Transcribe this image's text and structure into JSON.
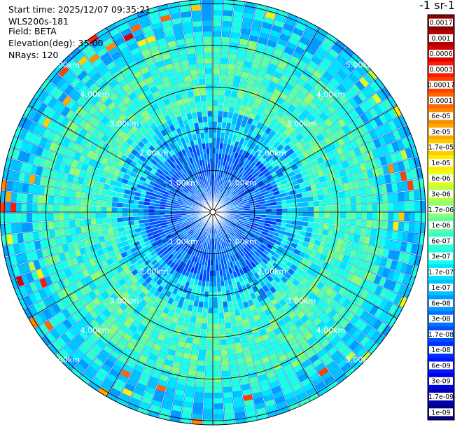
{
  "header": {
    "start_time": "Start time: 2025/12/07 09:35:21",
    "station": "WLS200s-181",
    "field": "Field: BETA",
    "elevation": "Elevation(deg): 35.00",
    "nrays": "NRays: 120"
  },
  "colorbar": {
    "title": "-1 sr-1",
    "labels": [
      "0.0017",
      "0.001",
      "0.0006",
      "0.0003",
      "0.00017",
      "0.0001",
      "6e-05",
      "3e-05",
      "1.7e-05",
      "1e-05",
      "6e-06",
      "3e-06",
      "1.7e-06",
      "1e-06",
      "6e-07",
      "3e-07",
      "1.7e-07",
      "1e-07",
      "6e-08",
      "3e-08",
      "1.7e-08",
      "1e-08",
      "6e-09",
      "3e-09",
      "1.7e-09",
      "1e-09"
    ],
    "colors": [
      "#8b0000",
      "#b00000",
      "#d90000",
      "#ff1a00",
      "#ff4000",
      "#ff6600",
      "#ff8a00",
      "#ffaa00",
      "#ffcc00",
      "#ffee00",
      "#e6ff1a",
      "#b8ff47",
      "#8cff73",
      "#5cffa3",
      "#33ffcc",
      "#1affe6",
      "#00e5ff",
      "#00c2ff",
      "#009cff",
      "#0073ff",
      "#0050ff",
      "#0030ff",
      "#0014ff",
      "#0000e0",
      "#0000b0",
      "#000080"
    ]
  },
  "chart_data": {
    "type": "heatmap",
    "projection": "polar PPI scan",
    "nrays": 120,
    "elevation_deg": 35.0,
    "range_unit": "km",
    "range_rings_km": [
      1,
      2,
      3,
      4,
      5
    ],
    "range_ring_labels": [
      "1.00km",
      "2.00km",
      "3.00km",
      "4.00km",
      "5.00km"
    ],
    "max_range_km": 5.1,
    "value_scale": "log",
    "value_min": 1e-09,
    "value_max": 0.0017
  }
}
